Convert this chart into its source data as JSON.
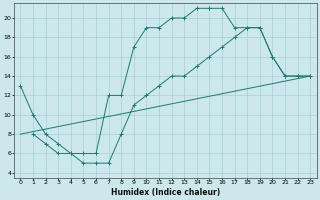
{
  "xlabel": "Humidex (Indice chaleur)",
  "bg_color": "#cce8ec",
  "line_color": "#1e7a70",
  "grid_color": "#aacdd4",
  "xlim": [
    -0.5,
    23.5
  ],
  "ylim": [
    3.5,
    21.5
  ],
  "yticks": [
    4,
    6,
    8,
    10,
    12,
    14,
    16,
    18,
    20
  ],
  "xticks": [
    0,
    1,
    2,
    3,
    4,
    5,
    6,
    7,
    8,
    9,
    10,
    11,
    12,
    13,
    14,
    15,
    16,
    17,
    18,
    19,
    20,
    21,
    22,
    23
  ],
  "line1_x": [
    0,
    1,
    2,
    3,
    4,
    5,
    6,
    7,
    8,
    9,
    10,
    11,
    12,
    13,
    14,
    15,
    16,
    17,
    18,
    19,
    20,
    21,
    22,
    23
  ],
  "line1_y": [
    13,
    10,
    8,
    7,
    6,
    6,
    6,
    12,
    12,
    17,
    19,
    19,
    20,
    20,
    21,
    21,
    21,
    19,
    19,
    19,
    16,
    14,
    14,
    14
  ],
  "line2_x": [
    1,
    2,
    3,
    4,
    5,
    6,
    7,
    8,
    9,
    10,
    11,
    12,
    13,
    14,
    15,
    16,
    17,
    18,
    19,
    20,
    21,
    22,
    23
  ],
  "line2_y": [
    8,
    7,
    6,
    6,
    5,
    5,
    5,
    8,
    11,
    12,
    13,
    14,
    14,
    15,
    16,
    17,
    18,
    19,
    19,
    16,
    14,
    14,
    14
  ],
  "line3_x": [
    0,
    23
  ],
  "line3_y": [
    8,
    14
  ]
}
